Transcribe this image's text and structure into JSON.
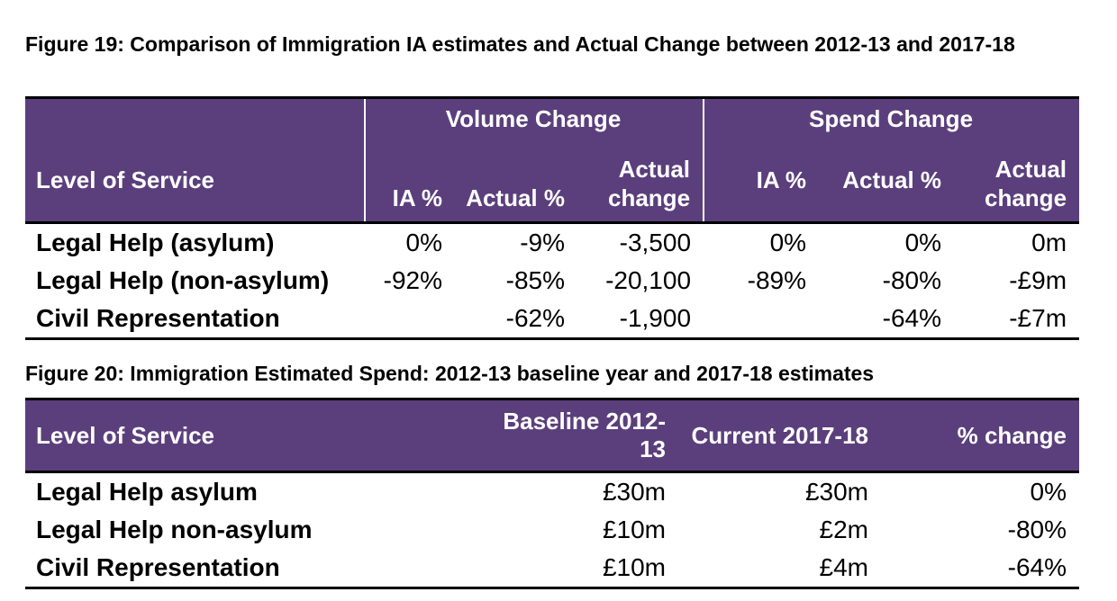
{
  "figure19": {
    "caption": "Figure 19: Comparison of Immigration IA estimates and Actual Change between 2012-13 and 2017-18",
    "group_headers": [
      "Volume Change",
      "Spend Change"
    ],
    "columns": [
      "Level of Service",
      "IA %",
      "Actual %",
      "Actual change",
      "IA %",
      "Actual %",
      "Actual change"
    ],
    "rows": [
      [
        "Legal Help (asylum)",
        "0%",
        "-9%",
        "-3,500",
        "0%",
        "0%",
        "0m"
      ],
      [
        "Legal Help (non-asylum)",
        "-92%",
        "-85%",
        "-20,100",
        "-89%",
        "-80%",
        "-£9m"
      ],
      [
        "Civil Representation",
        "",
        "-62%",
        "-1,900",
        "",
        "-64%",
        "-£7m"
      ]
    ]
  },
  "figure20": {
    "caption": "Figure 20: Immigration Estimated Spend: 2012-13 baseline year and 2017-18 estimates",
    "columns": [
      "Level of Service",
      "Baseline 2012-13",
      "Current 2017-18",
      "% change"
    ],
    "rows": [
      [
        "Legal Help asylum",
        "£30m",
        "£30m",
        "0%"
      ],
      [
        "Legal Help non-asylum",
        "£10m",
        "£2m",
        "-80%"
      ],
      [
        "Civil Representation",
        "£10m",
        "£4m",
        "-64%"
      ]
    ]
  }
}
